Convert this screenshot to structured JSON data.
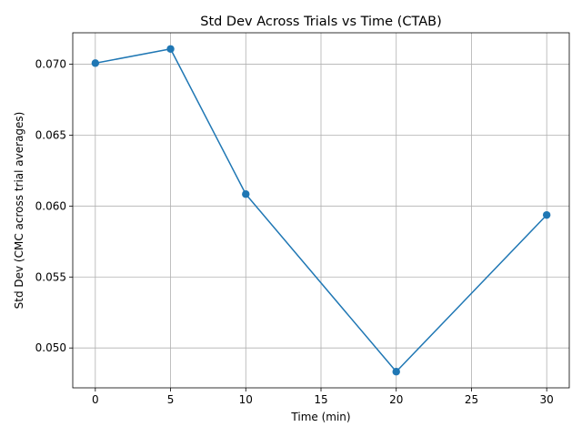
{
  "chart_data": {
    "type": "line",
    "title": "Std Dev Across Trials vs Time (CTAB)",
    "xlabel": "Time (min)",
    "ylabel": "Std Dev (CMC across trial averages)",
    "x": [
      0,
      5,
      10,
      20,
      30
    ],
    "series": [
      {
        "values": [
          0.07007,
          0.07107,
          0.06084,
          0.04833,
          0.05937
        ],
        "color": "#1f77b4",
        "marker": "circle"
      }
    ],
    "xlim": [
      -1.5,
      31.5
    ],
    "ylim": [
      0.04719,
      0.07221
    ],
    "xticks": [
      0,
      5,
      10,
      15,
      20,
      25,
      30
    ],
    "xtick_labels": [
      "0",
      "5",
      "10",
      "15",
      "20",
      "25",
      "30"
    ],
    "yticks": [
      0.05,
      0.055,
      0.06,
      0.065,
      0.07
    ],
    "ytick_labels": [
      "0.050",
      "0.055",
      "0.060",
      "0.065",
      "0.070"
    ],
    "grid": true,
    "legend": "none"
  }
}
